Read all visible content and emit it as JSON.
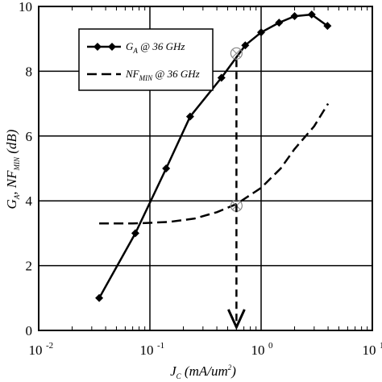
{
  "chart_data": {
    "type": "line",
    "x_scale": "log",
    "xlim": [
      0.01,
      10
    ],
    "ylim": [
      0,
      10
    ],
    "grid": true,
    "legend_position": "top-left",
    "xlabel": "J_C (mA/um^2)",
    "xlabel_parts": {
      "main": "J",
      "sub": "C",
      "rest": " (mA/um",
      "sup": "2",
      "close": ")"
    },
    "ylabel": "G_A, NF_MIN (dB)",
    "ylabel_parts": {
      "g": "G",
      "gsub": "A",
      "sep": ", NF",
      "nfsub": "MIN",
      "unit": " (dB)"
    },
    "x_ticks": [
      {
        "value": 0.01,
        "base": "10",
        "exp": "-2"
      },
      {
        "value": 0.1,
        "base": "10",
        "exp": "-1"
      },
      {
        "value": 1,
        "base": "10",
        "exp": "0"
      },
      {
        "value": 10,
        "base": "10",
        "exp": "1"
      }
    ],
    "y_ticks": [
      "0",
      "2",
      "4",
      "6",
      "8",
      "10"
    ],
    "series": [
      {
        "name": "G_A @ 36 GHz",
        "legend_parts": {
          "main": "G",
          "sub": "A",
          "rest": " @ 36 GHz"
        },
        "style": "solid",
        "marker": "diamond",
        "x": [
          0.035,
          0.074,
          0.14,
          0.23,
          0.44,
          0.72,
          1.0,
          1.45,
          2.0,
          2.85,
          3.95
        ],
        "y": [
          1.0,
          3.0,
          5.0,
          6.6,
          7.8,
          8.8,
          9.2,
          9.5,
          9.7,
          9.75,
          9.4
        ]
      },
      {
        "name": "NF_MIN @ 36 GHz",
        "legend_parts": {
          "main": "NF",
          "sub": "MIN",
          "rest": " @ 36 GHz"
        },
        "style": "dashed",
        "marker": "none",
        "x": [
          0.035,
          0.07,
          0.1,
          0.15,
          0.25,
          0.4,
          0.6,
          1.0,
          1.5,
          2.0,
          3.0,
          4.0
        ],
        "y": [
          3.3,
          3.3,
          3.32,
          3.35,
          3.45,
          3.65,
          3.9,
          4.4,
          5.0,
          5.6,
          6.3,
          7.0
        ]
      }
    ],
    "annotation": {
      "type": "vertical-dashed-arrow",
      "x": 0.6,
      "y_from": 8.55,
      "y_to": 0,
      "circled_points": [
        {
          "x": 0.6,
          "y": 8.55
        },
        {
          "x": 0.6,
          "y": 3.85
        }
      ]
    }
  }
}
